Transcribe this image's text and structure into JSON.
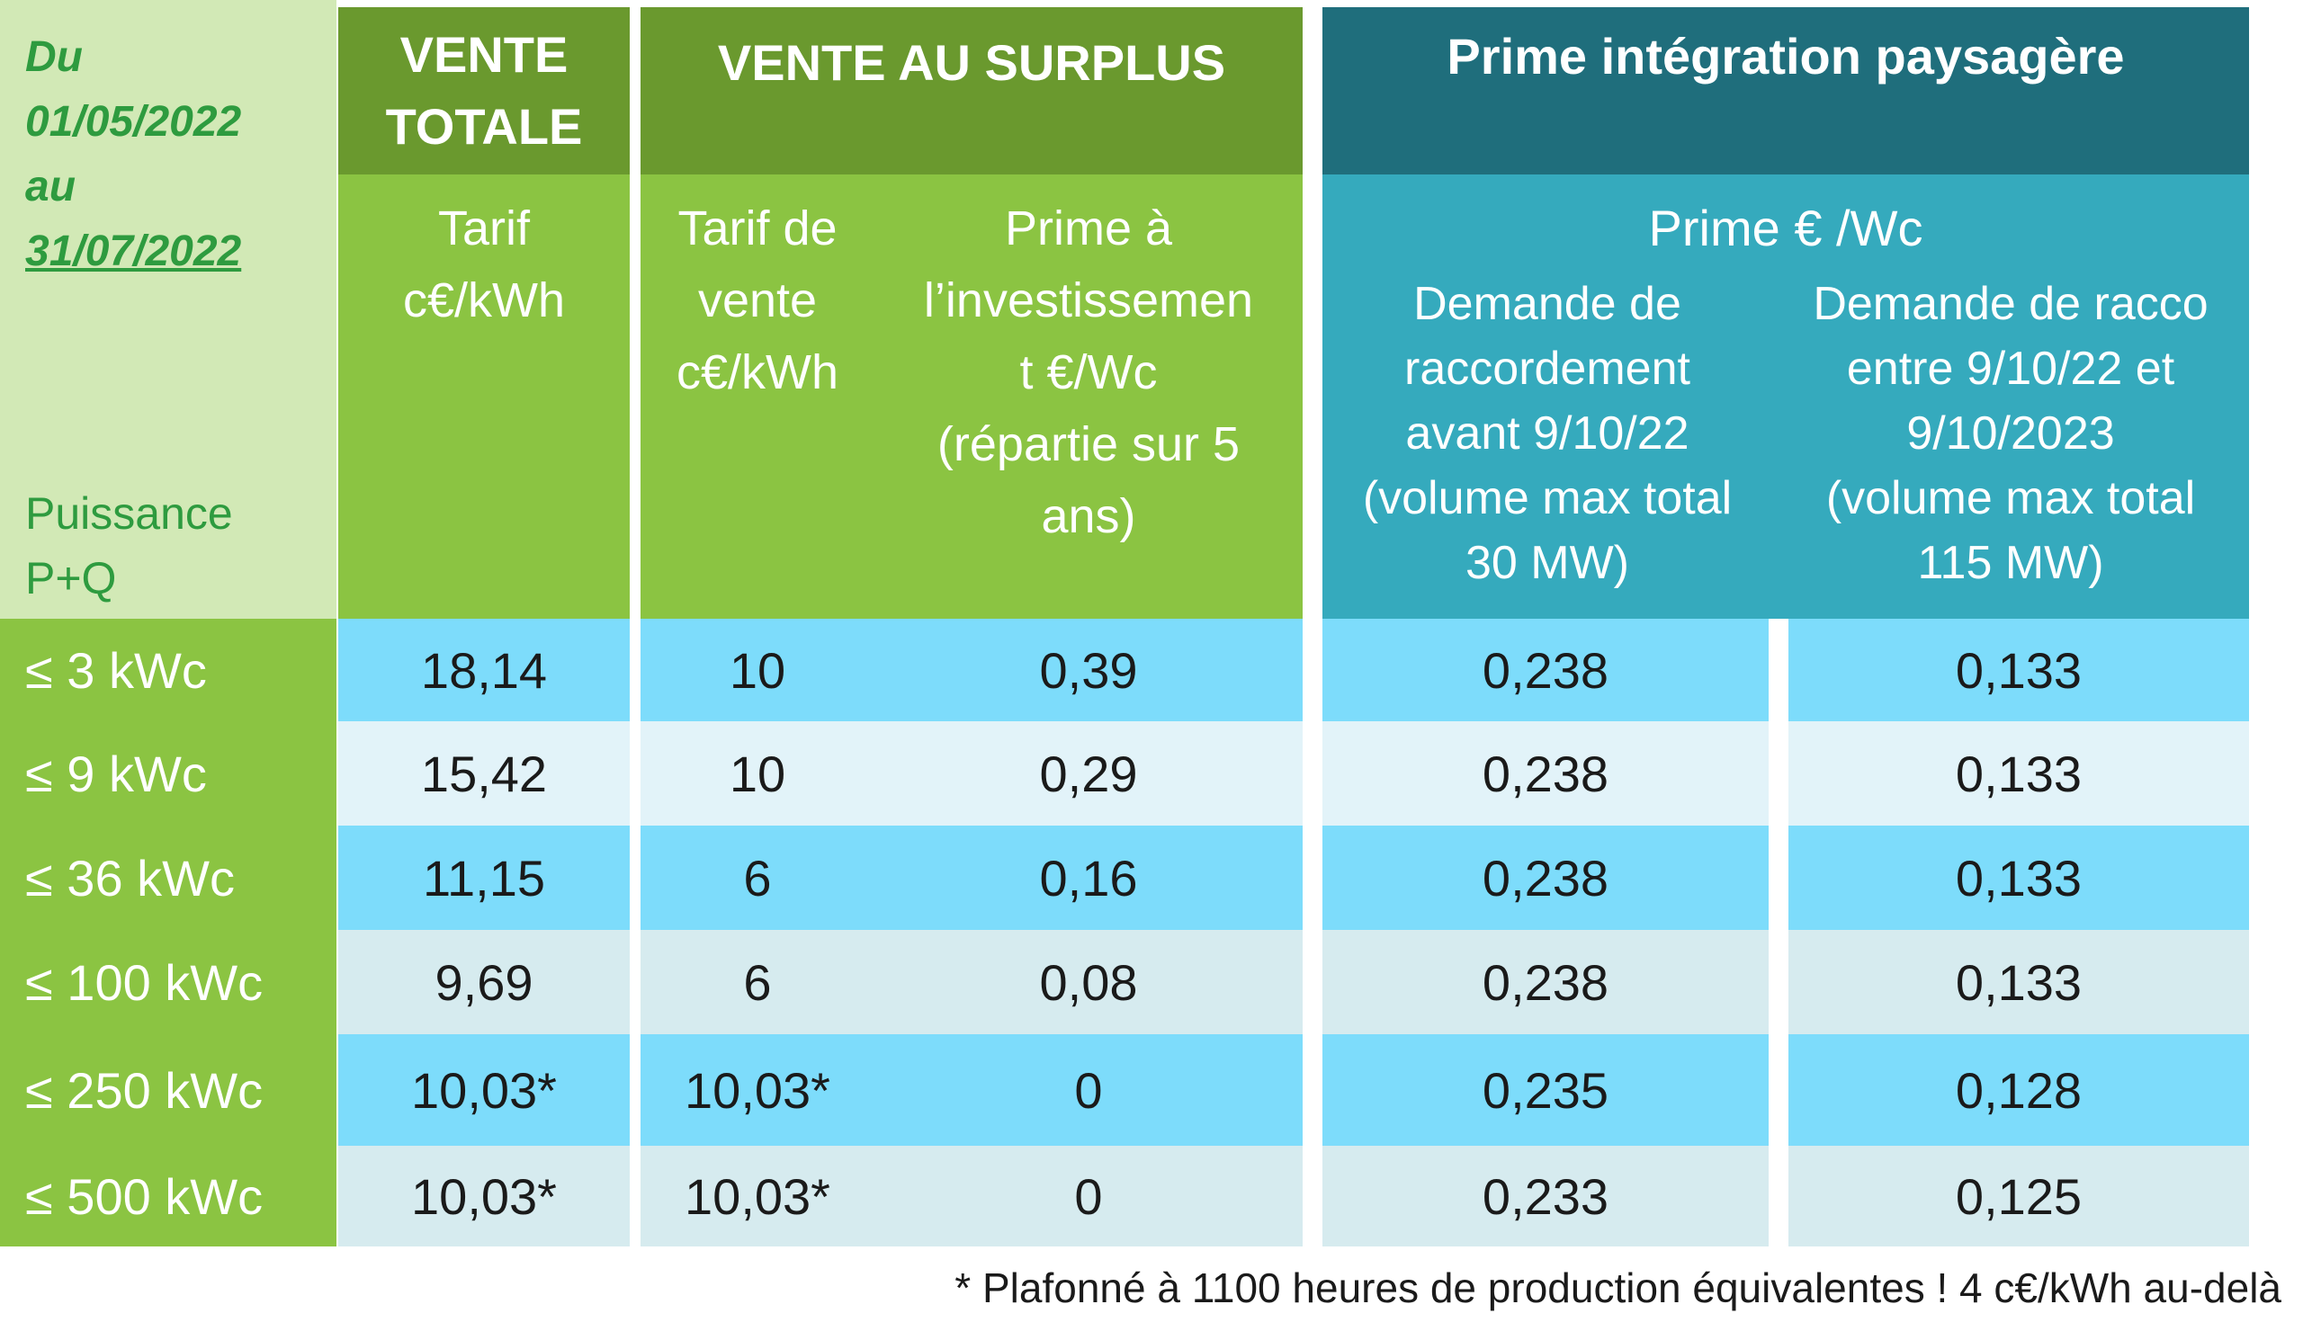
{
  "corner": {
    "period_line1": "Du",
    "period_line2": "01/05/2022",
    "period_line3": "au",
    "period_line4": "31/07/2022",
    "power_line1": "Puissance",
    "power_line2": "P+Q"
  },
  "groups": {
    "vente_totale_l1": "VENTE",
    "vente_totale_l2": "TOTALE",
    "vente_surplus": "VENTE AU SURPLUS",
    "prime_paysagere": "Prime intégration paysagère"
  },
  "subheaders": {
    "tarif_l1": "Tarif",
    "tarif_l2": "c€/kWh",
    "tarif_vente_l1": "Tarif de",
    "tarif_vente_l2": "vente",
    "tarif_vente_l3": "c€/kWh",
    "prime_invest_l1": "Prime à",
    "prime_invest_l2": "l’investissemen",
    "prime_invest_l3": "t €/Wc",
    "prime_invest_l4": "(répartie sur 5",
    "prime_invest_l5": "ans)",
    "prime_wc": "Prime € /Wc",
    "demande_avant_l1": "Demande de",
    "demande_avant_l2": "raccordement",
    "demande_avant_l3": "avant 9/10/22",
    "demande_avant_l4": "(volume max total",
    "demande_avant_l5": "30 MW)",
    "demande_entre_l1": "Demande de racco",
    "demande_entre_l2": "entre 9/10/22 et",
    "demande_entre_l3": "9/10/2023",
    "demande_entre_l4": "(volume max total",
    "demande_entre_l5": "115 MW)"
  },
  "rows": [
    {
      "power": "≤ 3 kWc",
      "vente_totale": "18,14",
      "tarif_vente": "10",
      "prime_invest": "0,39",
      "prime_avant": "0,238",
      "prime_entre": "0,133"
    },
    {
      "power": "≤  9 kWc",
      "vente_totale": "15,42",
      "tarif_vente": "10",
      "prime_invest": "0,29",
      "prime_avant": "0,238",
      "prime_entre": "0,133"
    },
    {
      "power": "≤  36 kWc",
      "vente_totale": "11,15",
      "tarif_vente": "6",
      "prime_invest": "0,16",
      "prime_avant": "0,238",
      "prime_entre": "0,133"
    },
    {
      "power": "≤  100 kWc",
      "vente_totale": "9,69",
      "tarif_vente": "6",
      "prime_invest": "0,08",
      "prime_avant": "0,238",
      "prime_entre": "0,133"
    },
    {
      "power": "≤  250 kWc",
      "vente_totale": "10,03*",
      "tarif_vente": "10,03*",
      "prime_invest": "0",
      "prime_avant": "0,235",
      "prime_entre": "0,128"
    },
    {
      "power": "≤  500 kWc",
      "vente_totale": "10,03*",
      "tarif_vente": "10,03*",
      "prime_invest": "0",
      "prime_avant": "0,233",
      "prime_entre": "0,125"
    }
  ],
  "footnote": "* Plafonné à 1100 heures de production équivalentes ! 4 c€/kWh au-delà",
  "colors": {
    "dark_green": "#6a992e",
    "light_green": "#8bc442",
    "pale_green": "#d2e9b6",
    "dark_teal": "#1f6e7c",
    "teal": "#35aabd",
    "row_blue": "#7ddcfb",
    "row_pale": "#e2f3f9",
    "row_grey": "#d6ebef",
    "label_green": "#2e9b3f"
  }
}
